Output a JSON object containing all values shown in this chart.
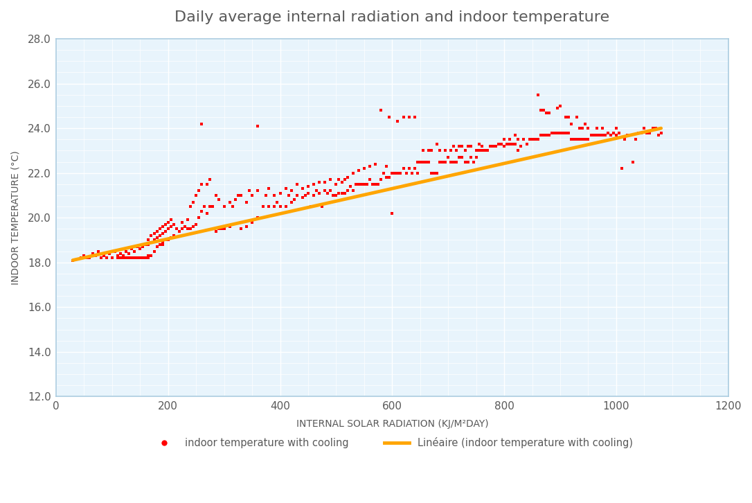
{
  "title": "Daily average internal radiation and indoor temperature",
  "xlabel": "INTERNAL SOLAR RADIATION (KJ/M²DAY)",
  "ylabel": "INDOOR TEMPERATURE (°C)",
  "xlim": [
    0,
    1200
  ],
  "ylim": [
    12.0,
    28.0
  ],
  "xticks": [
    0,
    200,
    400,
    600,
    800,
    1000,
    1200
  ],
  "yticks": [
    12.0,
    14.0,
    16.0,
    18.0,
    20.0,
    22.0,
    24.0,
    26.0,
    28.0
  ],
  "scatter_color": "#FF0000",
  "line_color": "#FFA500",
  "background_color": "#E8F4FC",
  "grid_major_color": "#FFFFFF",
  "title_color": "#595959",
  "axis_label_color": "#595959",
  "tick_color": "#595959",
  "spine_color": "#AACCE0",
  "legend_scatter_label": "indoor temperature with cooling",
  "legend_line_label": "Linéaire (indoor temperature with cooling)",
  "trendline_x": [
    30,
    1080
  ],
  "trendline_y": [
    18.1,
    24.0
  ],
  "scatter_points": [
    [
      30,
      18.1
    ],
    [
      45,
      18.2
    ],
    [
      50,
      18.3
    ],
    [
      55,
      18.2
    ],
    [
      60,
      18.2
    ],
    [
      65,
      18.4
    ],
    [
      70,
      18.3
    ],
    [
      75,
      18.5
    ],
    [
      80,
      18.2
    ],
    [
      85,
      18.3
    ],
    [
      90,
      18.2
    ],
    [
      95,
      18.4
    ],
    [
      100,
      18.2
    ],
    [
      105,
      18.5
    ],
    [
      110,
      18.2
    ],
    [
      110,
      18.3
    ],
    [
      115,
      18.2
    ],
    [
      115,
      18.4
    ],
    [
      120,
      18.2
    ],
    [
      120,
      18.3
    ],
    [
      125,
      18.2
    ],
    [
      125,
      18.5
    ],
    [
      130,
      18.2
    ],
    [
      130,
      18.4
    ],
    [
      135,
      18.2
    ],
    [
      135,
      18.6
    ],
    [
      140,
      18.2
    ],
    [
      140,
      18.5
    ],
    [
      145,
      18.2
    ],
    [
      145,
      18.7
    ],
    [
      150,
      18.2
    ],
    [
      150,
      18.6
    ],
    [
      155,
      18.2
    ],
    [
      155,
      18.7
    ],
    [
      160,
      18.2
    ],
    [
      160,
      18.8
    ],
    [
      160,
      18.2
    ],
    [
      165,
      18.2
    ],
    [
      165,
      18.8
    ],
    [
      165,
      19.0
    ],
    [
      165,
      18.3
    ],
    [
      170,
      18.3
    ],
    [
      170,
      18.9
    ],
    [
      170,
      19.2
    ],
    [
      175,
      18.5
    ],
    [
      175,
      19.0
    ],
    [
      175,
      19.3
    ],
    [
      180,
      18.7
    ],
    [
      180,
      19.1
    ],
    [
      180,
      19.4
    ],
    [
      185,
      18.8
    ],
    [
      185,
      19.2
    ],
    [
      185,
      19.5
    ],
    [
      190,
      18.8
    ],
    [
      190,
      19.3
    ],
    [
      190,
      19.6
    ],
    [
      190,
      18.9
    ],
    [
      195,
      19.0
    ],
    [
      195,
      19.4
    ],
    [
      195,
      19.7
    ],
    [
      200,
      19.0
    ],
    [
      200,
      19.5
    ],
    [
      200,
      19.8
    ],
    [
      205,
      19.1
    ],
    [
      205,
      19.6
    ],
    [
      205,
      19.9
    ],
    [
      210,
      19.2
    ],
    [
      210,
      19.7
    ],
    [
      215,
      19.5
    ],
    [
      220,
      19.4
    ],
    [
      225,
      19.5
    ],
    [
      225,
      19.8
    ],
    [
      230,
      19.6
    ],
    [
      235,
      19.5
    ],
    [
      235,
      19.9
    ],
    [
      240,
      19.5
    ],
    [
      240,
      20.5
    ],
    [
      245,
      19.6
    ],
    [
      245,
      20.7
    ],
    [
      250,
      19.7
    ],
    [
      250,
      21.0
    ],
    [
      255,
      20.0
    ],
    [
      255,
      21.2
    ],
    [
      260,
      20.3
    ],
    [
      260,
      21.5
    ],
    [
      260,
      24.2
    ],
    [
      265,
      20.5
    ],
    [
      270,
      20.2
    ],
    [
      270,
      21.5
    ],
    [
      275,
      20.5
    ],
    [
      275,
      21.7
    ],
    [
      280,
      20.5
    ],
    [
      285,
      19.4
    ],
    [
      285,
      21.0
    ],
    [
      290,
      19.5
    ],
    [
      290,
      20.8
    ],
    [
      295,
      19.5
    ],
    [
      300,
      19.5
    ],
    [
      300,
      20.5
    ],
    [
      310,
      19.6
    ],
    [
      310,
      20.7
    ],
    [
      315,
      20.5
    ],
    [
      320,
      20.8
    ],
    [
      325,
      21.0
    ],
    [
      330,
      19.5
    ],
    [
      330,
      21.0
    ],
    [
      340,
      19.6
    ],
    [
      340,
      20.7
    ],
    [
      345,
      21.2
    ],
    [
      350,
      19.8
    ],
    [
      350,
      21.0
    ],
    [
      360,
      20.0
    ],
    [
      360,
      21.2
    ],
    [
      360,
      24.1
    ],
    [
      370,
      20.5
    ],
    [
      375,
      21.0
    ],
    [
      380,
      20.5
    ],
    [
      380,
      21.3
    ],
    [
      390,
      20.5
    ],
    [
      390,
      21.0
    ],
    [
      395,
      20.7
    ],
    [
      400,
      20.5
    ],
    [
      400,
      21.1
    ],
    [
      410,
      20.5
    ],
    [
      410,
      21.3
    ],
    [
      415,
      21.0
    ],
    [
      420,
      20.7
    ],
    [
      420,
      21.2
    ],
    [
      425,
      20.8
    ],
    [
      430,
      21.0
    ],
    [
      430,
      21.5
    ],
    [
      440,
      20.9
    ],
    [
      440,
      21.3
    ],
    [
      445,
      21.0
    ],
    [
      450,
      21.1
    ],
    [
      450,
      21.4
    ],
    [
      455,
      20.5
    ],
    [
      460,
      21.0
    ],
    [
      460,
      21.5
    ],
    [
      465,
      21.2
    ],
    [
      470,
      21.1
    ],
    [
      470,
      21.6
    ],
    [
      475,
      20.5
    ],
    [
      480,
      21.2
    ],
    [
      480,
      21.6
    ],
    [
      485,
      21.1
    ],
    [
      490,
      21.2
    ],
    [
      490,
      21.7
    ],
    [
      495,
      21.0
    ],
    [
      500,
      21.0
    ],
    [
      500,
      21.5
    ],
    [
      505,
      21.1
    ],
    [
      505,
      21.7
    ],
    [
      510,
      21.1
    ],
    [
      510,
      21.6
    ],
    [
      515,
      21.1
    ],
    [
      515,
      21.7
    ],
    [
      520,
      21.2
    ],
    [
      520,
      21.8
    ],
    [
      525,
      21.4
    ],
    [
      530,
      21.2
    ],
    [
      530,
      22.0
    ],
    [
      535,
      21.5
    ],
    [
      540,
      21.5
    ],
    [
      540,
      22.1
    ],
    [
      545,
      21.5
    ],
    [
      550,
      21.5
    ],
    [
      550,
      22.2
    ],
    [
      555,
      21.5
    ],
    [
      560,
      21.7
    ],
    [
      560,
      22.3
    ],
    [
      565,
      21.5
    ],
    [
      570,
      21.5
    ],
    [
      570,
      22.4
    ],
    [
      575,
      21.5
    ],
    [
      580,
      21.7
    ],
    [
      580,
      24.8
    ],
    [
      585,
      22.0
    ],
    [
      590,
      21.8
    ],
    [
      590,
      22.3
    ],
    [
      595,
      21.8
    ],
    [
      595,
      24.5
    ],
    [
      600,
      22.0
    ],
    [
      600,
      20.2
    ],
    [
      605,
      22.0
    ],
    [
      610,
      22.0
    ],
    [
      610,
      24.3
    ],
    [
      615,
      22.0
    ],
    [
      620,
      22.2
    ],
    [
      620,
      24.5
    ],
    [
      625,
      22.0
    ],
    [
      630,
      22.2
    ],
    [
      630,
      24.5
    ],
    [
      635,
      22.0
    ],
    [
      640,
      22.2
    ],
    [
      640,
      24.5
    ],
    [
      645,
      22.5
    ],
    [
      645,
      22.0
    ],
    [
      650,
      22.5
    ],
    [
      655,
      22.5
    ],
    [
      655,
      23.0
    ],
    [
      660,
      22.5
    ],
    [
      665,
      22.5
    ],
    [
      665,
      23.0
    ],
    [
      670,
      22.0
    ],
    [
      670,
      23.0
    ],
    [
      675,
      22.0
    ],
    [
      680,
      22.0
    ],
    [
      680,
      23.3
    ],
    [
      685,
      22.5
    ],
    [
      685,
      23.0
    ],
    [
      690,
      22.5
    ],
    [
      695,
      22.5
    ],
    [
      695,
      23.0
    ],
    [
      700,
      22.7
    ],
    [
      705,
      22.5
    ],
    [
      705,
      23.0
    ],
    [
      710,
      22.5
    ],
    [
      710,
      23.2
    ],
    [
      715,
      22.5
    ],
    [
      715,
      23.0
    ],
    [
      720,
      22.7
    ],
    [
      720,
      23.2
    ],
    [
      725,
      22.7
    ],
    [
      725,
      23.2
    ],
    [
      730,
      22.5
    ],
    [
      730,
      23.0
    ],
    [
      735,
      22.5
    ],
    [
      735,
      23.2
    ],
    [
      740,
      22.7
    ],
    [
      740,
      23.2
    ],
    [
      745,
      22.5
    ],
    [
      750,
      22.7
    ],
    [
      750,
      23.0
    ],
    [
      755,
      23.0
    ],
    [
      755,
      23.3
    ],
    [
      760,
      23.0
    ],
    [
      760,
      23.2
    ],
    [
      765,
      23.0
    ],
    [
      770,
      23.0
    ],
    [
      775,
      23.2
    ],
    [
      780,
      23.2
    ],
    [
      785,
      23.2
    ],
    [
      790,
      23.3
    ],
    [
      795,
      23.3
    ],
    [
      800,
      23.2
    ],
    [
      800,
      23.5
    ],
    [
      805,
      23.3
    ],
    [
      810,
      23.3
    ],
    [
      810,
      23.5
    ],
    [
      815,
      23.3
    ],
    [
      820,
      23.3
    ],
    [
      820,
      23.7
    ],
    [
      825,
      23.0
    ],
    [
      825,
      23.5
    ],
    [
      830,
      23.2
    ],
    [
      835,
      23.5
    ],
    [
      840,
      23.3
    ],
    [
      845,
      23.5
    ],
    [
      850,
      23.5
    ],
    [
      855,
      23.5
    ],
    [
      860,
      23.5
    ],
    [
      860,
      25.5
    ],
    [
      865,
      23.7
    ],
    [
      865,
      24.8
    ],
    [
      870,
      23.7
    ],
    [
      870,
      24.8
    ],
    [
      875,
      23.7
    ],
    [
      875,
      24.7
    ],
    [
      880,
      23.7
    ],
    [
      880,
      24.7
    ],
    [
      885,
      23.8
    ],
    [
      890,
      23.8
    ],
    [
      895,
      23.8
    ],
    [
      895,
      24.9
    ],
    [
      900,
      23.8
    ],
    [
      900,
      25.0
    ],
    [
      905,
      23.8
    ],
    [
      910,
      23.8
    ],
    [
      910,
      24.5
    ],
    [
      915,
      23.8
    ],
    [
      915,
      24.5
    ],
    [
      920,
      23.5
    ],
    [
      920,
      24.2
    ],
    [
      925,
      23.5
    ],
    [
      930,
      23.5
    ],
    [
      930,
      24.5
    ],
    [
      935,
      23.5
    ],
    [
      935,
      24.0
    ],
    [
      940,
      23.5
    ],
    [
      940,
      24.0
    ],
    [
      945,
      23.5
    ],
    [
      945,
      24.2
    ],
    [
      950,
      23.5
    ],
    [
      950,
      24.0
    ],
    [
      955,
      23.7
    ],
    [
      960,
      23.7
    ],
    [
      965,
      23.7
    ],
    [
      965,
      24.0
    ],
    [
      970,
      23.7
    ],
    [
      975,
      23.7
    ],
    [
      975,
      24.0
    ],
    [
      980,
      23.7
    ],
    [
      985,
      23.8
    ],
    [
      990,
      23.7
    ],
    [
      995,
      23.8
    ],
    [
      1000,
      23.7
    ],
    [
      1000,
      24.0
    ],
    [
      1005,
      23.8
    ],
    [
      1010,
      22.2
    ],
    [
      1015,
      23.5
    ],
    [
      1020,
      23.7
    ],
    [
      1025,
      23.7
    ],
    [
      1030,
      22.5
    ],
    [
      1035,
      23.5
    ],
    [
      1040,
      23.8
    ],
    [
      1045,
      23.8
    ],
    [
      1050,
      24.0
    ],
    [
      1055,
      23.8
    ],
    [
      1060,
      23.8
    ],
    [
      1065,
      24.0
    ],
    [
      1070,
      24.0
    ],
    [
      1075,
      23.7
    ],
    [
      1080,
      23.8
    ]
  ]
}
